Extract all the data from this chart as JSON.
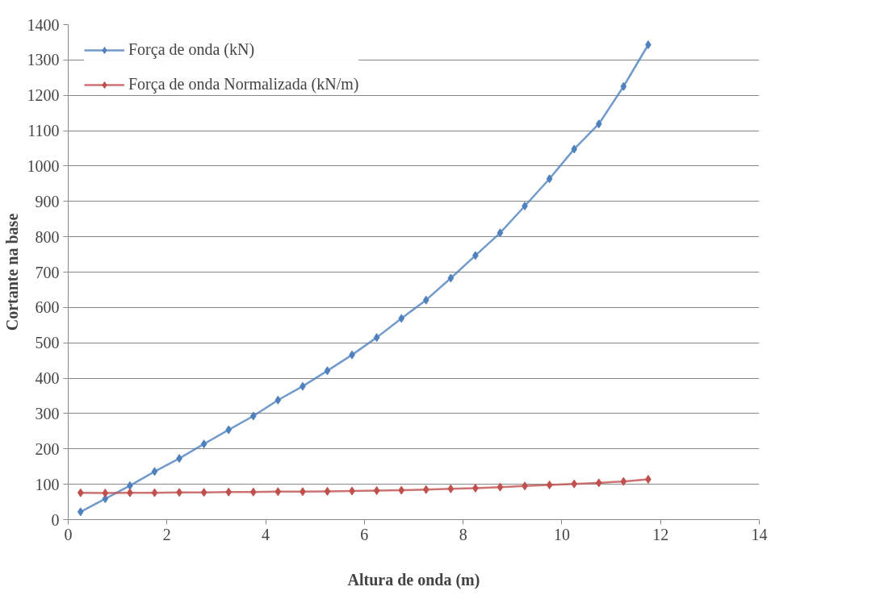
{
  "chart_data": {
    "type": "line",
    "xlabel": "Altura de onda (m)",
    "ylabel": "Cortante na base",
    "x": [
      0.25,
      0.75,
      1.25,
      1.75,
      2.25,
      2.75,
      3.25,
      3.75,
      4.25,
      4.75,
      5.25,
      5.75,
      6.25,
      6.75,
      7.25,
      7.75,
      8.25,
      8.75,
      9.25,
      9.75,
      10.25,
      10.75,
      11.25,
      11.75
    ],
    "series": [
      {
        "name": "Força de onda (kN)",
        "color": "#4f81bd",
        "values": [
          22,
          59,
          96,
          136,
          173,
          214,
          254,
          293,
          338,
          377,
          421,
          466,
          515,
          569,
          621,
          683,
          747,
          811,
          887,
          964,
          1048,
          1119,
          1225,
          1343
        ]
      },
      {
        "name": "Força de onda Normalizada (kN/m)",
        "color": "#c0504d",
        "values": [
          76,
          75,
          76,
          76,
          77,
          77,
          78,
          78,
          79,
          79,
          80,
          81,
          82,
          83,
          85,
          87,
          89,
          92,
          95,
          98,
          101,
          104,
          108,
          114
        ]
      }
    ],
    "xlim": [
      0,
      14
    ],
    "xticks": [
      0,
      2,
      4,
      6,
      8,
      10,
      12,
      14
    ],
    "ylim": [
      0,
      1400
    ],
    "yticks": [
      0,
      100,
      200,
      300,
      400,
      500,
      600,
      700,
      800,
      900,
      1000,
      1100,
      1200,
      1300,
      1400
    ],
    "grid": "y",
    "legend": "top left",
    "marker": "diamond",
    "line_style": "solid"
  }
}
